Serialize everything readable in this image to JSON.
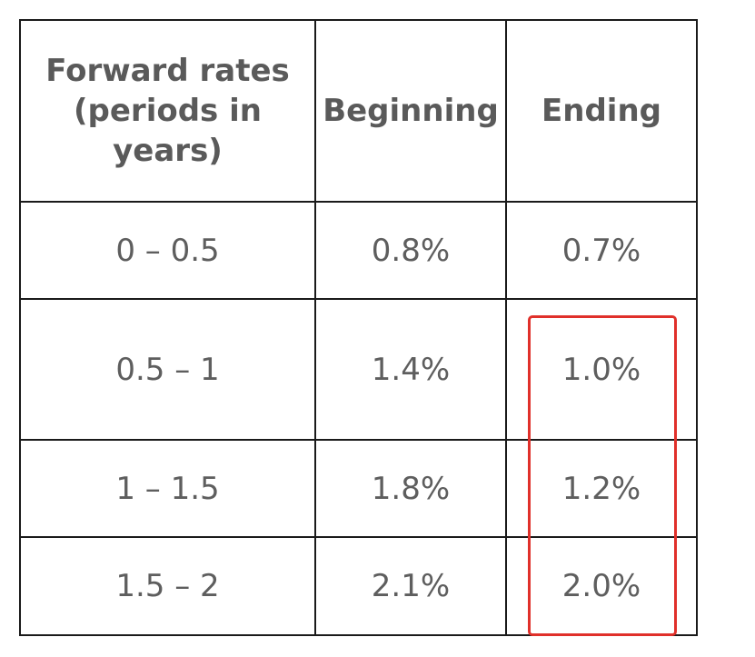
{
  "table": {
    "headers": [
      "Forward rates (periods in years)",
      "Beginning",
      "Ending"
    ],
    "rows": [
      {
        "period": "0 – 0.5",
        "beginning": "0.8%",
        "ending": "0.7%"
      },
      {
        "period": "0.5 – 1",
        "beginning": "1.4%",
        "ending": "1.0%"
      },
      {
        "period": "1 – 1.5",
        "beginning": "1.8%",
        "ending": "1.2%"
      },
      {
        "period": "1.5 – 2",
        "beginning": "2.1%",
        "ending": "2.0%"
      }
    ]
  },
  "highlight": {
    "color": "#e0302a",
    "column": "Ending",
    "rows": [
      "0.5 – 1",
      "1 – 1.5",
      "1.5 – 2"
    ]
  }
}
